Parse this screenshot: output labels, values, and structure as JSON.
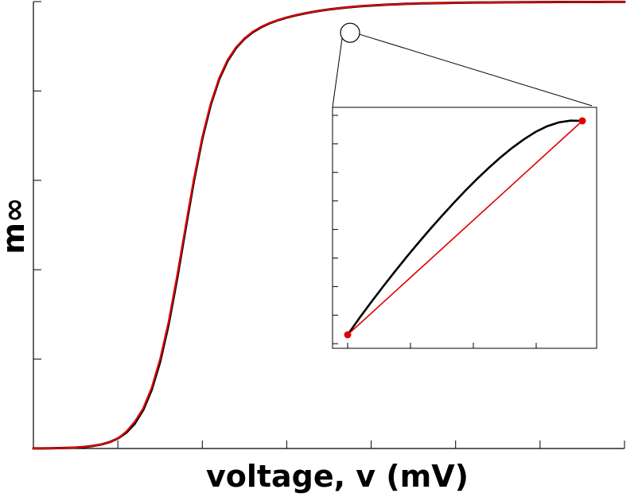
{
  "chart_data": {
    "type": "line",
    "xlabel": "voltage, v (mV)",
    "ylabel": "m∞",
    "title": "",
    "main": {
      "x": [
        0,
        10,
        20,
        30,
        40,
        50,
        60,
        70,
        80,
        90,
        100,
        110,
        120,
        130,
        140,
        150,
        160,
        170,
        180,
        190,
        200,
        210,
        220,
        230,
        240,
        250,
        260,
        270,
        280,
        290,
        300,
        310,
        320,
        330,
        340,
        350,
        360,
        370,
        380,
        390,
        400,
        410,
        420,
        430,
        440,
        450,
        460,
        470,
        480,
        490,
        500,
        510,
        520,
        530,
        540,
        550,
        560,
        570,
        580,
        590,
        600,
        610,
        620,
        630,
        640,
        650,
        660,
        670,
        680,
        690,
        700
      ],
      "xlim": [
        0,
        700
      ],
      "ylim": [
        0,
        1
      ],
      "series": [
        {
          "color": "#000000",
          "values": [
            0.0002,
            0.0003,
            0.0005,
            0.0008,
            0.0013,
            0.0021,
            0.0034,
            0.0055,
            0.0088,
            0.0141,
            0.0224,
            0.0355,
            0.0557,
            0.0863,
            0.1311,
            0.1939,
            0.2769,
            0.3781,
            0.4894,
            0.5983,
            0.6933,
            0.7694,
            0.8265,
            0.8675,
            0.8964,
            0.917,
            0.9319,
            0.943,
            0.9517,
            0.9586,
            0.9643,
            0.969,
            0.9731,
            0.9767,
            0.9797,
            0.9824,
            0.9847,
            0.9867,
            0.9884,
            0.9899,
            0.9912,
            0.9923,
            0.9933,
            0.9941,
            0.9948,
            0.9954,
            0.9959,
            0.9963,
            0.9967,
            0.997,
            0.9973,
            0.9975,
            0.9977,
            0.9979,
            0.9981,
            0.9982,
            0.9984,
            0.9985,
            0.9986,
            0.9987,
            0.9988,
            0.9989,
            0.999,
            0.999,
            0.9991,
            0.9991,
            0.9992,
            0.9992,
            0.9993,
            0.9993,
            0.9994
          ]
        },
        {
          "color": "#e00000",
          "values": [
            0.0002,
            0.0003,
            0.0005,
            0.0008,
            0.0013,
            0.0021,
            0.0034,
            0.0055,
            0.0088,
            0.0141,
            0.0224,
            0.038,
            0.06,
            0.09,
            0.136,
            0.2,
            0.283,
            0.385,
            0.495,
            0.603,
            0.697,
            0.772,
            0.829,
            0.87,
            0.898,
            0.918,
            0.933,
            0.944,
            0.9525,
            0.9592,
            0.9648,
            0.9694,
            0.9734,
            0.9769,
            0.9799,
            0.9825,
            0.9848,
            0.9868,
            0.9885,
            0.99,
            0.9912,
            0.9923,
            0.9933,
            0.9941,
            0.9948,
            0.9954,
            0.9959,
            0.9963,
            0.9967,
            0.997,
            0.9973,
            0.9975,
            0.9977,
            0.9979,
            0.9981,
            0.9982,
            0.9984,
            0.9985,
            0.9986,
            0.9987,
            0.9988,
            0.9989,
            0.999,
            0.999,
            0.9991,
            0.9991,
            0.9992,
            0.9992,
            0.9993,
            0.9993,
            0.9994
          ]
        }
      ],
      "zoom_center": {
        "x": 375,
        "y": 0.9303
      },
      "grid": false
    },
    "inset": {
      "xlim": [
        0,
        1
      ],
      "ylim": [
        0,
        1
      ],
      "curve": [
        [
          0.0,
          0.0
        ],
        [
          0.05,
          0.078
        ],
        [
          0.1,
          0.152
        ],
        [
          0.15,
          0.224
        ],
        [
          0.2,
          0.294
        ],
        [
          0.25,
          0.362
        ],
        [
          0.3,
          0.428
        ],
        [
          0.35,
          0.492
        ],
        [
          0.4,
          0.554
        ],
        [
          0.45,
          0.614
        ],
        [
          0.5,
          0.672
        ],
        [
          0.55,
          0.727
        ],
        [
          0.6,
          0.779
        ],
        [
          0.65,
          0.828
        ],
        [
          0.7,
          0.873
        ],
        [
          0.75,
          0.913
        ],
        [
          0.8,
          0.948
        ],
        [
          0.85,
          0.975
        ],
        [
          0.9,
          0.993
        ],
        [
          0.95,
          1.001
        ],
        [
          1.0,
          1.0
        ]
      ],
      "chord": [
        [
          0.0,
          0.0
        ],
        [
          1.0,
          1.0
        ]
      ],
      "grid": false
    }
  }
}
